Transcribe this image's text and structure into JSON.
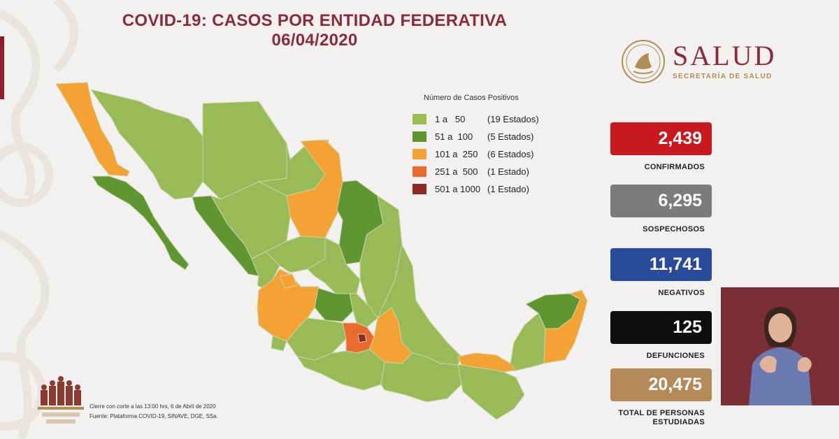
{
  "title": {
    "line1": "COVID-19: CASOS POR ENTIDAD FEDERATIVA",
    "line2": "06/04/2020"
  },
  "logo": {
    "brand": "SALUD",
    "subtitle": "SECRETARÍA DE SALUD"
  },
  "legend": {
    "title": "Número de Casos Positivos",
    "items": [
      {
        "range": "1 a   50",
        "count": "(19 Estados)",
        "color": "#98bb57"
      },
      {
        "range": "51 a  100",
        "count": "(5 Estados)",
        "color": "#5f9632"
      },
      {
        "range": "101 a  250",
        "count": "(6 Estados)",
        "color": "#f4a233"
      },
      {
        "range": "251 a  500",
        "count": "(1 Estado)",
        "color": "#e96a2c"
      },
      {
        "range": "501 a 1000",
        "count": "(1 Estado)",
        "color": "#8e2a23"
      }
    ]
  },
  "stats": [
    {
      "value": "2,439",
      "label": "CONFIRMADOS",
      "color": "#c8191f"
    },
    {
      "value": "6,295",
      "label": "SOSPECHOSOS",
      "color": "#7c7c7c"
    },
    {
      "value": "11,741",
      "label": "NEGATIVOS",
      "color": "#2a4a9a"
    },
    {
      "value": "125",
      "label": "DEFUNCIONES",
      "color": "#0e0e0e"
    },
    {
      "value": "20,475",
      "label": "TOTAL DE PERSONAS",
      "label2": "ESTUDIADAS",
      "color": "#b38a58"
    }
  ],
  "footnote": {
    "line1": "Cierre con corte a las 13:00 hrs, 6 de Abril de 2020",
    "line2": "Fuente: Plataforma COVID-19, SINAVE, DGE, SSa."
  },
  "icons": {
    "seal": "mexico-seal-icon",
    "interpreter": "sign-language-interpreter",
    "bottom_logo": "historical-figures-logo"
  }
}
